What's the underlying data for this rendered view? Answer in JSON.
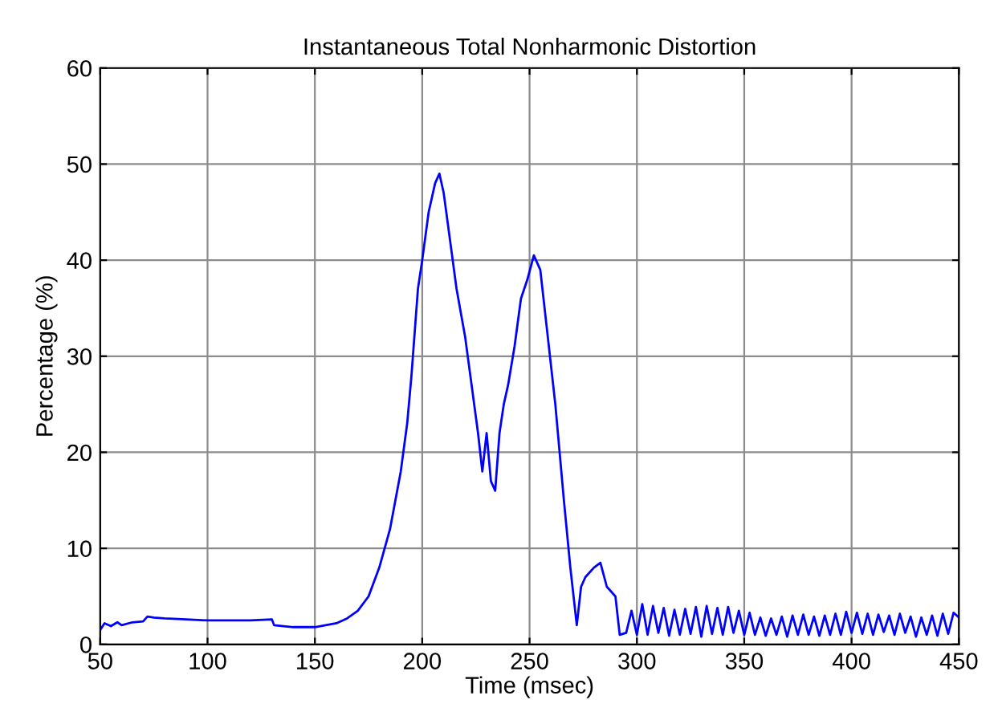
{
  "chart_data": {
    "type": "line",
    "title": "Instantaneous Total Nonharmonic Distortion",
    "xlabel": "Time (msec)",
    "ylabel": "Percentage (%)",
    "xlim": [
      50,
      450
    ],
    "ylim": [
      0,
      60
    ],
    "xticks": [
      50,
      100,
      150,
      200,
      250,
      300,
      350,
      400,
      450
    ],
    "yticks": [
      0,
      10,
      20,
      30,
      40,
      50,
      60
    ],
    "grid": true,
    "line_style": "solid",
    "marker": "none",
    "series": [
      {
        "color": "#0000ff",
        "x": [
          50,
          52,
          55,
          58,
          60,
          65,
          70,
          72,
          75,
          80,
          90,
          100,
          110,
          120,
          130,
          131,
          140,
          150,
          160,
          165,
          170,
          175,
          180,
          185,
          190,
          193,
          195,
          198,
          200,
          203,
          206,
          208,
          210,
          213,
          216,
          220,
          223,
          226,
          228,
          230,
          232,
          234,
          236,
          238,
          240,
          243,
          246,
          249,
          252,
          255,
          258,
          262,
          266,
          269,
          272,
          274,
          276,
          280,
          283,
          286,
          290,
          292,
          295,
          297.5,
          300,
          302.5,
          305,
          307.5,
          310,
          312.5,
          315,
          317.5,
          320,
          322.5,
          325,
          327.5,
          330,
          332.5,
          335,
          337.5,
          340,
          342.5,
          345,
          347.5,
          350,
          352.5,
          355,
          357.5,
          360,
          362.5,
          365,
          367.5,
          370,
          372.5,
          375,
          377.5,
          380,
          382.5,
          385,
          387.5,
          390,
          392.5,
          395,
          397.5,
          400,
          402.5,
          405,
          407.5,
          410,
          412.5,
          415,
          417.5,
          420,
          422.5,
          425,
          427.5,
          430,
          432.5,
          435,
          437.5,
          440,
          442.5,
          445,
          447.5,
          450
        ],
        "values": [
          1.5,
          2.2,
          1.9,
          2.3,
          2.0,
          2.3,
          2.4,
          2.9,
          2.8,
          2.7,
          2.6,
          2.5,
          2.5,
          2.5,
          2.6,
          2.0,
          1.8,
          1.8,
          2.2,
          2.7,
          3.5,
          5,
          8,
          12,
          18,
          23,
          28,
          37,
          40,
          45,
          48,
          49,
          47,
          42,
          37,
          32,
          27,
          22,
          18,
          22,
          17,
          16,
          22,
          25,
          27,
          31,
          36,
          38,
          40.5,
          39,
          33,
          25,
          15,
          8,
          2,
          6,
          7,
          8,
          8.5,
          6,
          5,
          1,
          1.2,
          3.5,
          1.0,
          4.2,
          1.0,
          4.0,
          1.2,
          3.8,
          0.9,
          3.6,
          1.0,
          3.7,
          1.1,
          3.9,
          0.8,
          4.0,
          1.1,
          3.8,
          1.0,
          3.9,
          1.2,
          3.5,
          1.0,
          3.3,
          1.0,
          2.8,
          0.9,
          2.7,
          1.0,
          2.9,
          0.8,
          3.0,
          1.0,
          3.1,
          1.0,
          2.9,
          0.9,
          3.0,
          1.0,
          3.2,
          1.0,
          3.4,
          1.2,
          3.3,
          1.1,
          3.2,
          1.0,
          3.1,
          1.3,
          3.0,
          1.0,
          3.2,
          1.2,
          2.9,
          0.8,
          2.8,
          1.0,
          3.0,
          0.9,
          3.2,
          1.1,
          3.3,
          2.8
        ]
      }
    ]
  }
}
